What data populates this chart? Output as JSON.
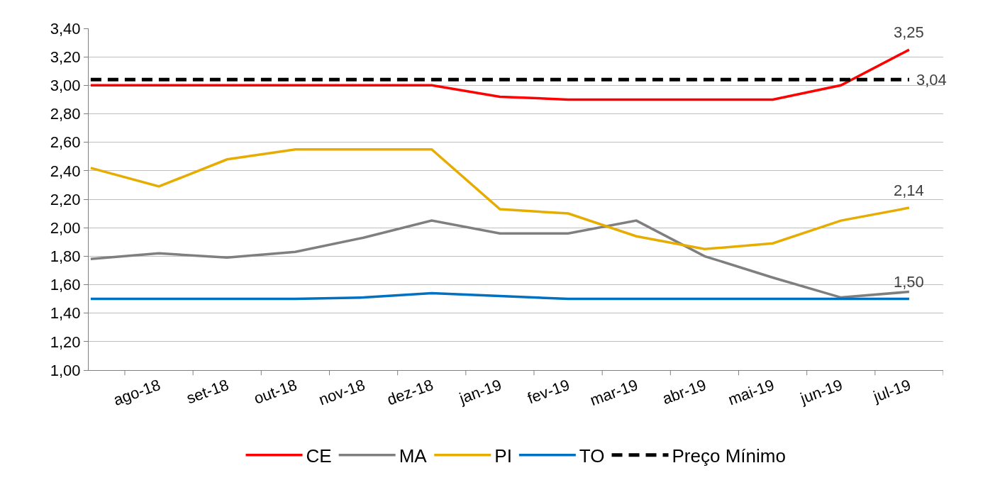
{
  "chart_data": {
    "type": "line",
    "categories": [
      null,
      "ago-18",
      "set-18",
      "out-18",
      "nov-18",
      "dez-18",
      "jan-19",
      "fev-19",
      "mar-19",
      "abr-19",
      "mai-19",
      "jun-19",
      "jul-19"
    ],
    "ylim": [
      1.0,
      3.4
    ],
    "yticks": [
      {
        "value": 1.0,
        "label": "1,00"
      },
      {
        "value": 1.2,
        "label": "1,20"
      },
      {
        "value": 1.4,
        "label": "1,40"
      },
      {
        "value": 1.6,
        "label": "1,60"
      },
      {
        "value": 1.8,
        "label": "1,80"
      },
      {
        "value": 2.0,
        "label": "2,00"
      },
      {
        "value": 2.2,
        "label": "2,20"
      },
      {
        "value": 2.4,
        "label": "2,40"
      },
      {
        "value": 2.6,
        "label": "2,60"
      },
      {
        "value": 2.8,
        "label": "2,80"
      },
      {
        "value": 3.0,
        "label": "3,00"
      },
      {
        "value": 3.2,
        "label": "3,20"
      },
      {
        "value": 3.4,
        "label": "3,40"
      }
    ],
    "grid": "y",
    "legend": "bottom",
    "marker": "none",
    "line_style": "solid",
    "series": [
      {
        "name": "CE",
        "color": "#ff0000",
        "values": [
          3.0,
          3.0,
          3.0,
          3.0,
          3.0,
          3.0,
          2.92,
          2.9,
          2.9,
          2.9,
          2.9,
          3.0,
          3.25
        ],
        "value_labels": [
          null,
          null,
          null,
          null,
          null,
          null,
          null,
          null,
          null,
          null,
          null,
          null,
          "3,25"
        ]
      },
      {
        "name": "MA",
        "color": "#7f7f7f",
        "values": [
          1.78,
          1.82,
          1.79,
          1.83,
          1.93,
          2.05,
          1.96,
          1.96,
          2.05,
          1.8,
          1.65,
          1.51,
          1.55
        ]
      },
      {
        "name": "PI",
        "color": "#e6ad00",
        "values": [
          2.42,
          2.29,
          2.48,
          2.55,
          2.55,
          2.55,
          2.13,
          2.1,
          1.94,
          1.85,
          1.89,
          2.05,
          2.14
        ],
        "value_labels": [
          null,
          null,
          null,
          null,
          null,
          null,
          null,
          null,
          null,
          null,
          null,
          null,
          "2,14"
        ]
      },
      {
        "name": "TO",
        "color": "#0070c0",
        "values": [
          1.5,
          1.5,
          1.5,
          1.5,
          1.51,
          1.54,
          1.52,
          1.5,
          1.5,
          1.5,
          1.5,
          1.5,
          1.5
        ],
        "value_labels": [
          null,
          null,
          null,
          null,
          null,
          null,
          null,
          null,
          null,
          null,
          null,
          null,
          "1,50"
        ]
      },
      {
        "name": "Preço Mínimo",
        "color": "#000000",
        "line_style": "dashed",
        "values": [
          3.04,
          3.04,
          3.04,
          3.04,
          3.04,
          3.04,
          3.04,
          3.04,
          3.04,
          3.04,
          3.04,
          3.04,
          3.04
        ],
        "value_labels": [
          null,
          null,
          null,
          null,
          null,
          null,
          null,
          null,
          null,
          null,
          null,
          null,
          "3,04"
        ]
      }
    ]
  }
}
